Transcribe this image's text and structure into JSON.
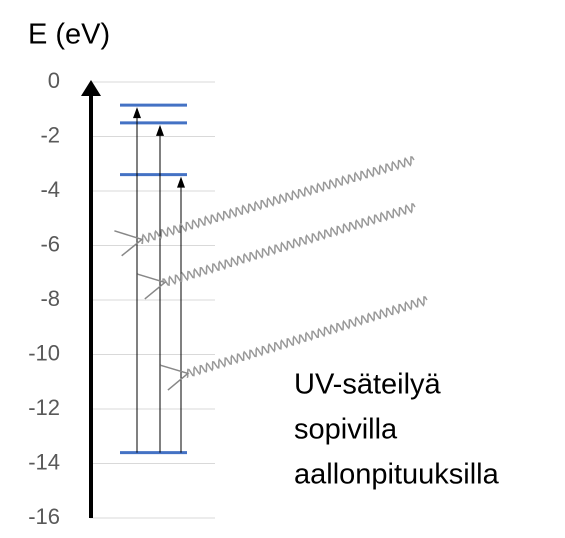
{
  "chart_data": {
    "type": "levels",
    "ylabel": "E (eV)",
    "ylim": [
      -16,
      0
    ],
    "yticks": [
      0,
      -2,
      -4,
      -6,
      -8,
      -10,
      -12,
      -14,
      -16
    ],
    "grid": true,
    "color": "#4472c4",
    "values": [
      -0.85,
      -1.5,
      -3.4,
      -13.6
    ],
    "annotation": [
      "UV-säteilyä",
      "sopivilla",
      "aallonpituuksilla"
    ]
  }
}
